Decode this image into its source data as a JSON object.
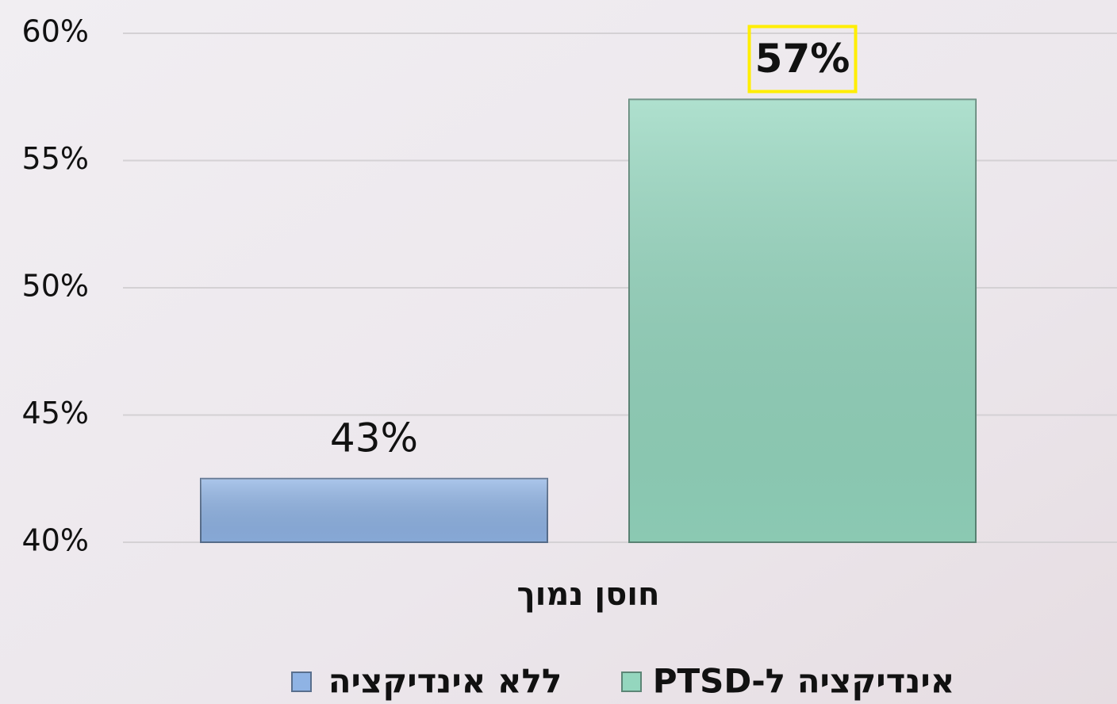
{
  "chart_data": {
    "type": "bar",
    "categories": [
      "חוסן נמוך"
    ],
    "series": [
      {
        "name": "ללא אינדיקציה",
        "color": "#8fb3e4",
        "values": [
          42.5
        ],
        "value_labels": [
          "43%"
        ]
      },
      {
        "name": "אינדיקציה ל-PTSD",
        "color": "#94d6be",
        "values": [
          57.4
        ],
        "value_labels": [
          "57%"
        ]
      }
    ],
    "ylim": [
      40,
      60
    ],
    "yticks": [
      {
        "value": 40,
        "label": "40%"
      },
      {
        "value": 45,
        "label": "45%"
      },
      {
        "value": 50,
        "label": "50%"
      },
      {
        "value": 55,
        "label": "55%"
      },
      {
        "value": 60,
        "label": "60%"
      }
    ],
    "grid": true,
    "legend": "bottom"
  }
}
